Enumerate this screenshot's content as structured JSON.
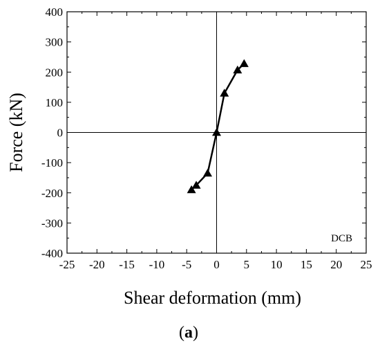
{
  "chart_data": {
    "type": "line",
    "title": "",
    "xlabel": "Shear deformation (mm)",
    "ylabel": "Force (kN)",
    "xlim": [
      -25,
      25
    ],
    "ylim": [
      -400,
      400
    ],
    "xticks": [
      -25,
      -20,
      -15,
      -10,
      -5,
      0,
      5,
      10,
      15,
      20,
      25
    ],
    "yticks": [
      -400,
      -300,
      -200,
      -100,
      0,
      100,
      200,
      300,
      400
    ],
    "grid": false,
    "zero_lines": true,
    "marker": "triangle",
    "series": [
      {
        "x": [
          -4.2,
          -3.4,
          -1.5,
          0,
          1.3,
          3.5,
          4.6
        ],
        "y": [
          -190,
          -175,
          -135,
          0,
          130,
          207,
          228
        ]
      }
    ],
    "annotations": [
      "DCB"
    ],
    "panel_label": "(a)",
    "colors": {
      "line": "#000000",
      "marker": "#000000",
      "axis": "#000000"
    }
  }
}
